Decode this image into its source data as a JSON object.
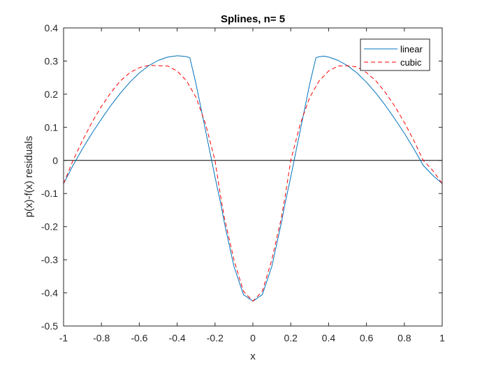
{
  "chart_data": {
    "type": "line",
    "title": "Splines, n= 5",
    "xlabel": "x",
    "ylabel": "p(x)-f(x) residuals",
    "xlim": [
      -1,
      1
    ],
    "ylim": [
      -0.5,
      0.4
    ],
    "x_ticks": [
      -1,
      -0.8,
      -0.6,
      -0.4,
      -0.2,
      0,
      0.2,
      0.4,
      0.6,
      0.8,
      1
    ],
    "x_tick_labels": [
      "-1",
      "-0.8",
      "-0.6",
      "-0.4",
      "-0.2",
      "0",
      "0.2",
      "0.4",
      "0.6",
      "0.8",
      "1"
    ],
    "y_ticks": [
      -0.5,
      -0.4,
      -0.3,
      -0.2,
      -0.1,
      0,
      0.1,
      0.2,
      0.3,
      0.4
    ],
    "y_tick_labels": [
      "-0.5",
      "-0.4",
      "-0.3",
      "-0.2",
      "-0.1",
      "0",
      "0.1",
      "0.2",
      "0.3",
      "0.4"
    ],
    "grid": false,
    "legend_position": "top-right",
    "zero_line": {
      "y": 0,
      "color": "#000000"
    },
    "series": [
      {
        "name": "linear",
        "color": "#0072BD",
        "style": "solid",
        "x": [
          -1,
          -0.95,
          -0.9,
          -0.85,
          -0.8,
          -0.75,
          -0.7,
          -0.65,
          -0.6,
          -0.55,
          -0.5,
          -0.45,
          -0.4,
          -0.375,
          -0.35,
          -0.333,
          -0.3,
          -0.25,
          -0.2,
          -0.17,
          -0.15,
          -0.1,
          -0.05,
          0,
          0.05,
          0.1,
          0.15,
          0.17,
          0.2,
          0.25,
          0.3,
          0.333,
          0.35,
          0.375,
          0.4,
          0.45,
          0.5,
          0.55,
          0.6,
          0.65,
          0.7,
          0.75,
          0.8,
          0.85,
          0.9,
          0.95,
          1
        ],
        "y": [
          -0.07,
          -0.015,
          0.035,
          0.082,
          0.125,
          0.166,
          0.203,
          0.236,
          0.264,
          0.286,
          0.302,
          0.312,
          0.316,
          0.315,
          0.313,
          0.31,
          0.23,
          0.09,
          -0.05,
          -0.13,
          -0.19,
          -0.32,
          -0.405,
          -0.425,
          -0.405,
          -0.32,
          -0.19,
          -0.13,
          -0.05,
          0.09,
          0.23,
          0.31,
          0.313,
          0.315,
          0.312,
          0.302,
          0.286,
          0.264,
          0.236,
          0.203,
          0.166,
          0.125,
          0.082,
          0.035,
          -0.015,
          -0.045,
          -0.07
        ]
      },
      {
        "name": "cubic",
        "color": "#FF0000",
        "style": "dashed",
        "x": [
          -1,
          -0.95,
          -0.9,
          -0.85,
          -0.8,
          -0.75,
          -0.7,
          -0.65,
          -0.6,
          -0.55,
          -0.5,
          -0.45,
          -0.4,
          -0.35,
          -0.3,
          -0.25,
          -0.2,
          -0.17,
          -0.15,
          -0.1,
          -0.05,
          0,
          0.05,
          0.1,
          0.15,
          0.17,
          0.2,
          0.25,
          0.3,
          0.35,
          0.4,
          0.45,
          0.5,
          0.55,
          0.6,
          0.65,
          0.7,
          0.75,
          0.8,
          0.85,
          0.9,
          0.95,
          1
        ],
        "y": [
          -0.07,
          0.0,
          0.06,
          0.115,
          0.163,
          0.205,
          0.24,
          0.265,
          0.28,
          0.287,
          0.286,
          0.285,
          0.27,
          0.24,
          0.19,
          0.11,
          0.0,
          -0.11,
          -0.175,
          -0.3,
          -0.395,
          -0.425,
          -0.395,
          -0.3,
          -0.175,
          -0.11,
          0.0,
          0.11,
          0.19,
          0.24,
          0.27,
          0.285,
          0.286,
          0.282,
          0.265,
          0.24,
          0.205,
          0.163,
          0.115,
          0.06,
          0.0,
          -0.03,
          -0.07
        ]
      }
    ]
  }
}
